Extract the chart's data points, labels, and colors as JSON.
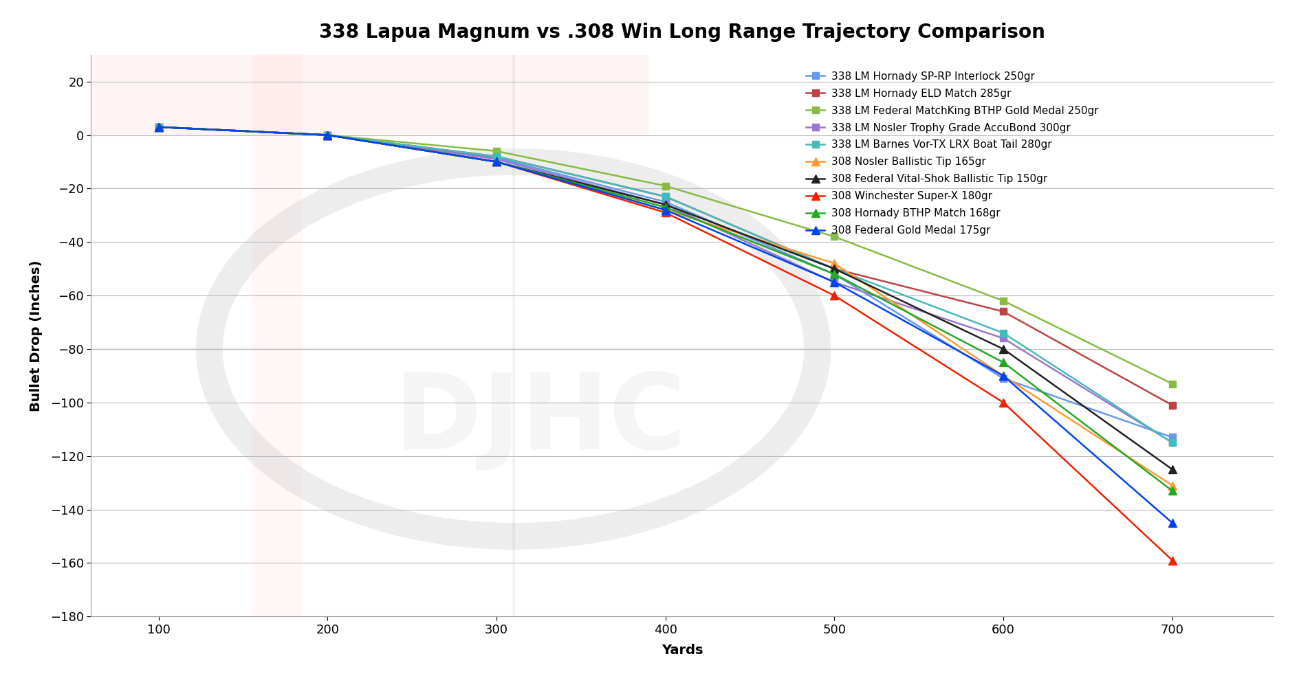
{
  "title": "338 Lapua Magnum vs .308 Win Long Range Trajectory Comparison",
  "xlabel": "Yards",
  "ylabel": "Bullet Drop (Inches)",
  "xlim": [
    60,
    760
  ],
  "ylim": [
    -180,
    30
  ],
  "yticks": [
    20,
    0,
    -20,
    -40,
    -60,
    -80,
    -100,
    -120,
    -140,
    -160,
    -180
  ],
  "xticks": [
    100,
    200,
    300,
    400,
    500,
    600,
    700
  ],
  "background_color": "#ffffff",
  "series": [
    {
      "label": "338 LM Hornady SP-RP Interlock 250gr",
      "color": "#6699ee",
      "marker": "s",
      "markersize": 7,
      "x": [
        100,
        200,
        300,
        400,
        500,
        600,
        700
      ],
      "y": [
        3.0,
        0.0,
        -8.5,
        -25.0,
        -52.0,
        -91.0,
        -113.0
      ]
    },
    {
      "label": "338 LM Hornady ELD Match 285gr",
      "color": "#bb4444",
      "marker": "s",
      "markersize": 7,
      "x": [
        100,
        200,
        300,
        400,
        500,
        600,
        700
      ],
      "y": [
        3.0,
        0.0,
        -8.0,
        -23.0,
        -50.0,
        -66.0,
        -101.0
      ]
    },
    {
      "label": "338 LM Federal MatchKing BTHP Gold Medal 250gr",
      "color": "#88bb44",
      "marker": "s",
      "markersize": 7,
      "x": [
        100,
        200,
        300,
        400,
        500,
        600,
        700
      ],
      "y": [
        3.0,
        0.0,
        -6.0,
        -19.0,
        -38.0,
        -62.0,
        -93.0
      ]
    },
    {
      "label": "338 LM Nosler Trophy Grade AccuBond 300gr",
      "color": "#9977cc",
      "marker": "s",
      "markersize": 7,
      "x": [
        100,
        200,
        300,
        400,
        500,
        600,
        700
      ],
      "y": [
        3.0,
        0.0,
        -9.0,
        -26.0,
        -55.0,
        -76.0,
        -115.0
      ]
    },
    {
      "label": "338 LM Barnes Vor-TX LRX Boat Tail 280gr",
      "color": "#44bbbb",
      "marker": "s",
      "markersize": 7,
      "x": [
        100,
        200,
        300,
        400,
        500,
        600,
        700
      ],
      "y": [
        3.0,
        0.0,
        -8.0,
        -23.0,
        -50.0,
        -74.0,
        -115.0
      ]
    },
    {
      "label": "308 Nosler Ballistic Tip 165gr",
      "color": "#ff9933",
      "marker": "^",
      "markersize": 8,
      "x": [
        100,
        200,
        300,
        400,
        500,
        600,
        700
      ],
      "y": [
        3.0,
        0.0,
        -10.0,
        -28.0,
        -48.0,
        -90.0,
        -131.0
      ]
    },
    {
      "label": "308 Federal Vital-Shok Ballistic Tip 150gr",
      "color": "#222222",
      "marker": "^",
      "markersize": 8,
      "x": [
        100,
        200,
        300,
        400,
        500,
        600,
        700
      ],
      "y": [
        3.0,
        0.0,
        -10.0,
        -26.0,
        -50.0,
        -80.0,
        -125.0
      ]
    },
    {
      "label": "308 Winchester Super-X 180gr",
      "color": "#ee2200",
      "marker": "^",
      "markersize": 8,
      "x": [
        100,
        200,
        300,
        400,
        500,
        600,
        700
      ],
      "y": [
        3.0,
        0.0,
        -10.0,
        -29.0,
        -60.0,
        -100.0,
        -159.0
      ]
    },
    {
      "label": "308 Hornady BTHP Match 168gr",
      "color": "#22aa22",
      "marker": "^",
      "markersize": 8,
      "x": [
        100,
        200,
        300,
        400,
        500,
        600,
        700
      ],
      "y": [
        3.0,
        0.0,
        -10.0,
        -27.0,
        -52.0,
        -85.0,
        -133.0
      ]
    },
    {
      "label": "308 Federal Gold Medal 175gr",
      "color": "#0044ee",
      "marker": "^",
      "markersize": 8,
      "x": [
        100,
        200,
        300,
        400,
        500,
        600,
        700
      ],
      "y": [
        3.0,
        0.0,
        -10.0,
        -28.0,
        -55.0,
        -90.0,
        -145.0
      ]
    }
  ],
  "title_fontsize": 20,
  "axis_label_fontsize": 14,
  "tick_fontsize": 13,
  "legend_fontsize": 11,
  "grid_color": "#bbbbbb",
  "watermark_circle_color": "#cccccc",
  "watermark_text_color": "#cccccc",
  "pink_region_color": "#ffdddd"
}
